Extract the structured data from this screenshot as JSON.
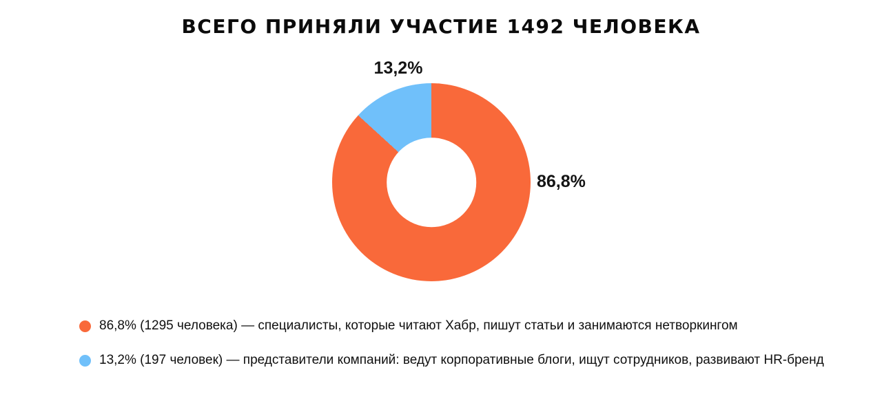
{
  "title": "ВСЕГО ПРИНЯЛИ УЧАСТИЕ 1492 ЧЕЛОВЕКА",
  "background_color": "#FFFFFF",
  "chart_data": {
    "type": "pie",
    "subtype": "donut",
    "title": "ВСЕГО ПРИНЯЛИ УЧАСТИЕ 1492 ЧЕЛОВЕКА",
    "total": 1492,
    "direction": "clockwise",
    "start_angle_deg": 0,
    "inner_radius_ratio": 0.45,
    "legend_position": "bottom-left",
    "slices": [
      {
        "name": "специалисты, которые читают Хабр, пишут статьи и занимаются нетворкингом",
        "value": 1295,
        "percent": 86.8,
        "percent_label": "86,8%",
        "color": "#F9693A"
      },
      {
        "name": "представители компаний: ведут корпоративные блоги, ищут сотрудников, развивают HR-бренд",
        "value": 197,
        "percent": 13.2,
        "percent_label": "13,2%",
        "color": "#70C0FA"
      }
    ]
  },
  "legend": {
    "items": [
      {
        "color": "#F9693A",
        "text": "86,8% (1295 человека) — специалисты, которые читают Хабр, пишут статьи и занимаются нетворкингом"
      },
      {
        "color": "#70C0FA",
        "text": "13,2% (197 человек) — представители компаний: ведут корпоративные блоги, ищут сотрудников, развивают HR-бренд"
      }
    ]
  }
}
